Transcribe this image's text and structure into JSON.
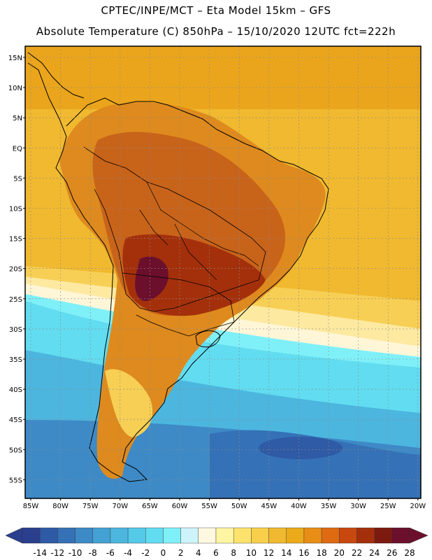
{
  "header": {
    "line1": "CPTEC/INPE/MCT –  Eta Model 15km – GFS",
    "line2": "Absolute Temperature (C) 850hPa – 15/10/2020 12UTC fct=222h"
  },
  "map": {
    "lat_labels": [
      "15N",
      "10N",
      "5N",
      "EQ",
      "5S",
      "10S",
      "15S",
      "20S",
      "25S",
      "30S",
      "35S",
      "40S",
      "45S",
      "50S",
      "55S"
    ],
    "lon_labels": [
      "85W",
      "80W",
      "75W",
      "70W",
      "65W",
      "60W",
      "55W",
      "50W",
      "45W",
      "40W",
      "35W",
      "30W",
      "25W",
      "20W"
    ]
  },
  "colorbar": {
    "labels": [
      "-14",
      "-12",
      "-10",
      "-8",
      "-6",
      "-4",
      "-2",
      "0",
      "2",
      "4",
      "6",
      "8",
      "10",
      "12",
      "14",
      "16",
      "18",
      "20",
      "22",
      "24",
      "26",
      "28"
    ],
    "colors": [
      "#2b3f8f",
      "#2f5aa5",
      "#3571b6",
      "#3d8ac6",
      "#44a1d3",
      "#4cb6df",
      "#54c9e8",
      "#62dcf0",
      "#7ff0f8",
      "#cdf4fb",
      "#fff8e0",
      "#fff5a3",
      "#fde36d",
      "#f8cf4b",
      "#f0b92f",
      "#ebaa1a",
      "#e88d16",
      "#de6a12",
      "#c8480f",
      "#a4300b",
      "#7d1a10",
      "#6b0f2c"
    ]
  }
}
